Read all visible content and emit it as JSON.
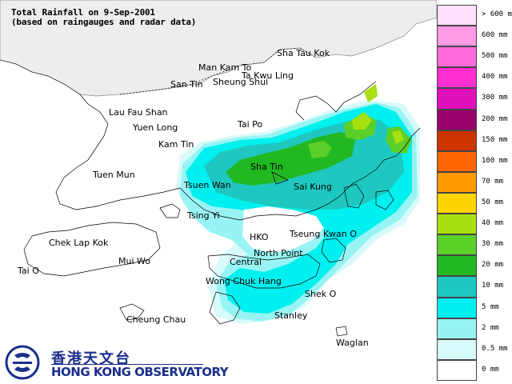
{
  "title": {
    "line1": "Total Rainfall on 9-Sep-2001",
    "line2": "(based on raingauges and radar data)"
  },
  "places": {
    "sha_tau_kok": "Sha Tau Kok",
    "man_kam_to": "Man Kam To",
    "ta_kwu_ling": "Ta Kwu Ling",
    "san_tin": "San Tin",
    "sheung_shui": "Sheung Shui",
    "lau_fau_shan": "Lau Fau Shan",
    "yuen_long": "Yuen Long",
    "tai_po": "Tai Po",
    "kam_tin": "Kam Tin",
    "sha_tin": "Sha Tin",
    "tuen_mun": "Tuen Mun",
    "tsuen_wan": "Tsuen Wan",
    "sai_kung": "Sai Kung",
    "tsing_yi": "Tsing Yi",
    "chek_lap_kok": "Chek Lap Kok",
    "hko": "HKO",
    "tseung_kwan_o": "Tseung Kwan O",
    "mui_wo": "Mui Wo",
    "north_point": "North Point",
    "central": "Central",
    "tai_o": "Tai O",
    "wong_chuk_hang": "Wong Chuk Hang",
    "shek_o": "Shek O",
    "cheung_chau": "Cheung Chau",
    "stanley": "Stanley",
    "waglan": "Waglan"
  },
  "legend": [
    {
      "label": "> 600 mm",
      "color": "#ffe0ff"
    },
    {
      "label": "600 mm",
      "color": "#ff9ae6"
    },
    {
      "label": "500 mm",
      "color": "#ff6cdc"
    },
    {
      "label": "400 mm",
      "color": "#ff2fd0"
    },
    {
      "label": "300 mm",
      "color": "#e010b8"
    },
    {
      "label": "200 mm",
      "color": "#98006a"
    },
    {
      "label": "150 mm",
      "color": "#cc3300"
    },
    {
      "label": "100 mm",
      "color": "#ff6600"
    },
    {
      "label": "70 mm",
      "color": "#ff9900"
    },
    {
      "label": "50 mm",
      "color": "#ffd400"
    },
    {
      "label": "40 mm",
      "color": "#a8e010"
    },
    {
      "label": "30 mm",
      "color": "#5ccf28"
    },
    {
      "label": "20 mm",
      "color": "#22b822"
    },
    {
      "label": "10 mm",
      "color": "#1ec8c0"
    },
    {
      "label": "5 mm",
      "color": "#00f0f0"
    },
    {
      "label": "2 mm",
      "color": "#98f4f4"
    },
    {
      "label": "0.5 mm",
      "color": "#d8fafa"
    },
    {
      "label": "0 mm",
      "color": "#ffffff"
    }
  ],
  "logo": {
    "chinese": "香港天文台",
    "english": "HONG KONG OBSERVATORY",
    "color": "#1a2f8a"
  },
  "colors": {
    "mainland_fill": "#ededed",
    "coast": "#000000"
  }
}
